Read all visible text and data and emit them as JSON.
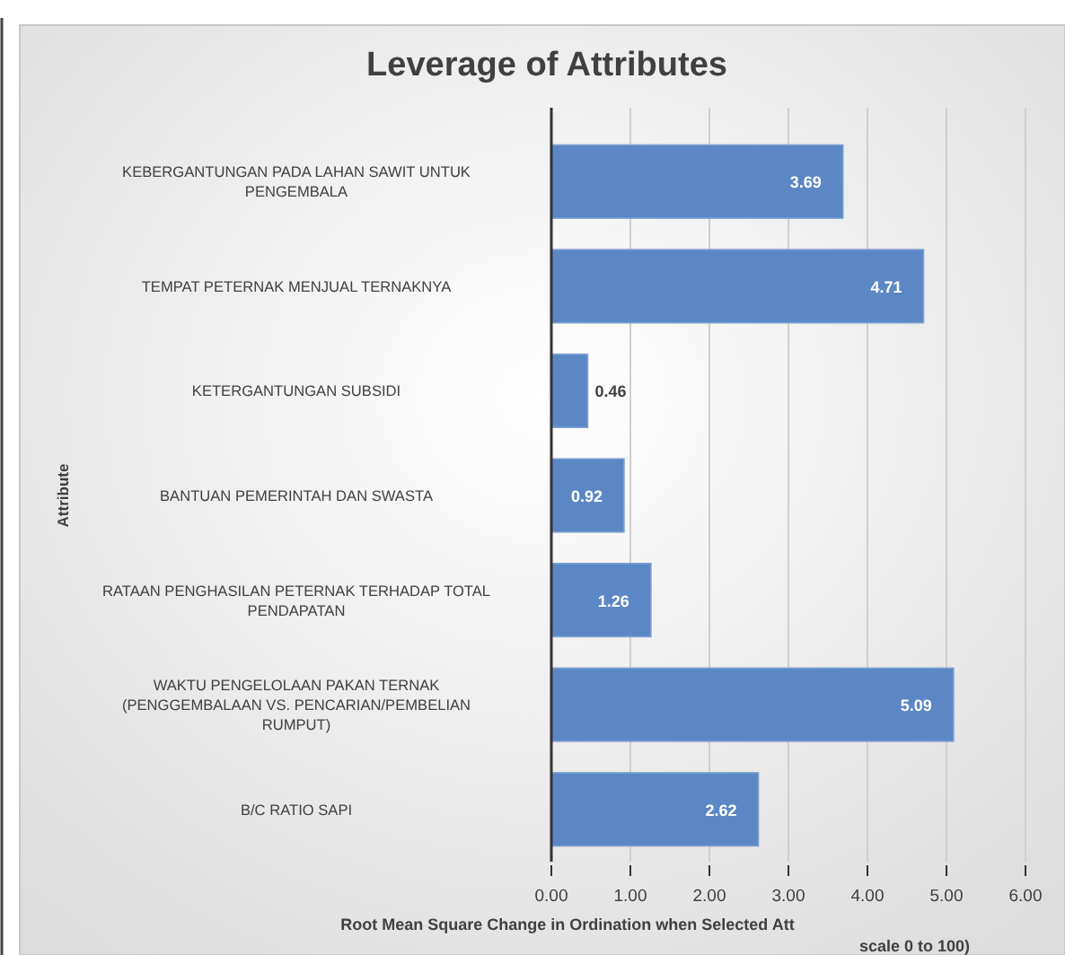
{
  "chart_data": {
    "type": "bar",
    "orientation": "horizontal",
    "title": "Leverage of Attributes",
    "xlabel": "Root Mean Square Change in Ordination when Selected Att\nscale 0 to 100)",
    "ylabel": "Attribute",
    "categories": [
      "KEBERGANTUNGAN PADA LAHAN SAWIT UNTUK PENGEMBALA",
      "TEMPAT PETERNAK MENJUAL TERNAKNYA",
      "KETERGANTUNGAN SUBSIDI",
      "BANTUAN PEMERINTAH DAN SWASTA",
      "RATAAN PENGHASILAN PETERNAK TERHADAP TOTAL PENDAPATAN",
      "WAKTU PENGELOLAAN PAKAN TERNAK (PENGGEMBALAAN VS. PENCARIAN/PEMBELIAN RUMPUT)",
      "B/C RATIO SAPI"
    ],
    "values": [
      3.69,
      4.71,
      0.46,
      0.92,
      1.26,
      5.09,
      2.62
    ],
    "color": "#5b87c5",
    "xlim": [
      0,
      6
    ],
    "xticks": [
      {
        "value": 0,
        "label": "0.00"
      },
      {
        "value": 1,
        "label": "1.00"
      },
      {
        "value": 2,
        "label": "2.00"
      },
      {
        "value": 3,
        "label": "3.00"
      },
      {
        "value": 4,
        "label": "4.00"
      },
      {
        "value": 5,
        "label": "5.00"
      },
      {
        "value": 6,
        "label": "6.00"
      }
    ],
    "grid": "x",
    "data_labels": true
  }
}
